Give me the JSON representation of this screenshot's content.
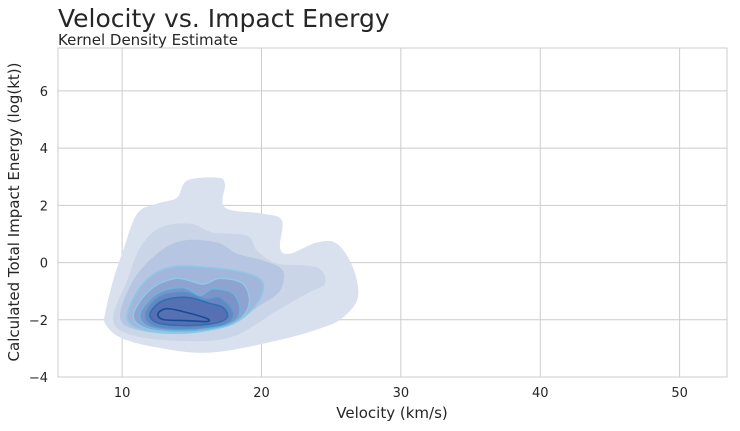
{
  "chart_data": {
    "type": "area",
    "title": "Velocity vs. Impact Energy",
    "subtitle": "Kernel Density Estimate",
    "xlabel": "Velocity (km/s)",
    "ylabel": "Calculated Total Impact Energy (log(kt))",
    "xlim": [
      5.4,
      53.4
    ],
    "ylim": [
      -4,
      7.5
    ],
    "xticks": [
      10,
      20,
      30,
      40,
      50
    ],
    "yticks": [
      -4,
      -2,
      0,
      2,
      4,
      6
    ],
    "grid": true,
    "colormap": [
      "#dae1ee",
      "#cbd5e8",
      "#b6c5e1",
      "#a2b5da",
      "#8ea3d0",
      "#7b93c7",
      "#6a84bf",
      "#5571b3"
    ],
    "line_colors": [
      "#8fc8e4",
      "#6fb3dc",
      "#4f95cd",
      "#2e6fb4",
      "#1a4a94"
    ],
    "contours": [
      {
        "level": 1,
        "points": [
          [
            8.78,
            -1.78
          ],
          [
            9.35,
            -0.63
          ],
          [
            10.07,
            0.42
          ],
          [
            11.08,
            1.71
          ],
          [
            12.51,
            2.06
          ],
          [
            13.94,
            2.27
          ],
          [
            14.66,
            2.87
          ],
          [
            16.81,
            2.97
          ],
          [
            17.38,
            2.76
          ],
          [
            17.38,
            1.92
          ],
          [
            20.11,
            1.71
          ],
          [
            21.47,
            1.47
          ],
          [
            21.33,
            0.52
          ],
          [
            22.04,
            0.31
          ],
          [
            23.98,
            0.7
          ],
          [
            25.41,
            0.66
          ],
          [
            26.56,
            -0.17
          ],
          [
            26.92,
            -1.22
          ],
          [
            25.84,
            -1.92
          ],
          [
            24.41,
            -2.27
          ],
          [
            21.11,
            -2.73
          ],
          [
            16.31,
            -3.15
          ],
          [
            12.51,
            -2.97
          ],
          [
            9.86,
            -2.62
          ],
          [
            8.78,
            -2.13
          ]
        ]
      },
      {
        "level": 2,
        "points": [
          [
            9.35,
            -1.92
          ],
          [
            10.36,
            -0.63
          ],
          [
            11.29,
            0.52
          ],
          [
            12.72,
            1.22
          ],
          [
            14.87,
            1.36
          ],
          [
            16.52,
            1.05
          ],
          [
            18.96,
            0.94
          ],
          [
            19.68,
            0.42
          ],
          [
            21.11,
            -0.03
          ],
          [
            23.98,
            -0.17
          ],
          [
            24.55,
            -0.73
          ],
          [
            23.26,
            -1.08
          ],
          [
            21.11,
            -1.68
          ],
          [
            17.74,
            -2.62
          ],
          [
            13.66,
            -2.73
          ],
          [
            10.36,
            -2.48
          ]
        ]
      },
      {
        "level": 3,
        "points": [
          [
            9.86,
            -1.92
          ],
          [
            10.79,
            -0.63
          ],
          [
            12.51,
            0.31
          ],
          [
            14.37,
            0.77
          ],
          [
            16.81,
            0.7
          ],
          [
            18.24,
            0.31
          ],
          [
            20.11,
            0.07
          ],
          [
            21.54,
            -0.28
          ],
          [
            21.33,
            -0.98
          ],
          [
            20.11,
            -1.43
          ],
          [
            17.74,
            -2.13
          ],
          [
            14.87,
            -2.48
          ],
          [
            11.29,
            -2.38
          ]
        ]
      },
      {
        "level": 4,
        "points": [
          [
            10.36,
            -1.92
          ],
          [
            11.51,
            -0.73
          ],
          [
            13.44,
            -0.17
          ],
          [
            16.09,
            -0.17
          ],
          [
            18.96,
            -0.38
          ],
          [
            20.11,
            -0.73
          ],
          [
            19.68,
            -1.43
          ],
          [
            17.96,
            -2.13
          ],
          [
            14.87,
            -2.45
          ],
          [
            11.79,
            -2.38
          ]
        ]
      },
      {
        "level": 5,
        "points": [
          [
            10.8,
            -1.85
          ],
          [
            12.0,
            -0.95
          ],
          [
            13.9,
            -0.55
          ],
          [
            15.8,
            -0.75
          ],
          [
            17.0,
            -0.55
          ],
          [
            18.7,
            -0.75
          ],
          [
            19.1,
            -1.5
          ],
          [
            17.9,
            -2.15
          ],
          [
            14.9,
            -2.42
          ],
          [
            11.9,
            -2.33
          ]
        ]
      },
      {
        "level": 6,
        "points": [
          [
            11.29,
            -1.78
          ],
          [
            12.51,
            -1.08
          ],
          [
            14.37,
            -0.87
          ],
          [
            15.59,
            -1.15
          ],
          [
            16.52,
            -0.91
          ],
          [
            17.96,
            -1.08
          ],
          [
            18.46,
            -1.68
          ],
          [
            17.74,
            -2.13
          ],
          [
            14.87,
            -2.38
          ],
          [
            12.01,
            -2.27
          ]
        ]
      },
      {
        "level": 7,
        "points": [
          [
            11.7,
            -1.8
          ],
          [
            12.7,
            -1.2
          ],
          [
            14.5,
            -1.05
          ],
          [
            16.0,
            -1.3
          ],
          [
            17.0,
            -1.25
          ],
          [
            17.9,
            -1.75
          ],
          [
            17.3,
            -2.15
          ],
          [
            14.6,
            -2.3
          ],
          [
            12.3,
            -2.2
          ]
        ]
      },
      {
        "level": 8,
        "points": [
          [
            12.01,
            -1.78
          ],
          [
            12.94,
            -1.33
          ],
          [
            14.66,
            -1.22
          ],
          [
            16.31,
            -1.43
          ],
          [
            17.24,
            -1.57
          ],
          [
            17.53,
            -1.92
          ],
          [
            16.52,
            -2.13
          ],
          [
            14.37,
            -2.2
          ],
          [
            12.51,
            -2.1
          ]
        ]
      },
      {
        "level": 9,
        "points": [
          [
            12.58,
            -1.78
          ],
          [
            13.23,
            -1.61
          ],
          [
            14.66,
            -1.75
          ],
          [
            16.09,
            -1.96
          ],
          [
            16.09,
            -2.06
          ],
          [
            14.66,
            -2.03
          ],
          [
            12.94,
            -1.99
          ]
        ]
      }
    ]
  }
}
